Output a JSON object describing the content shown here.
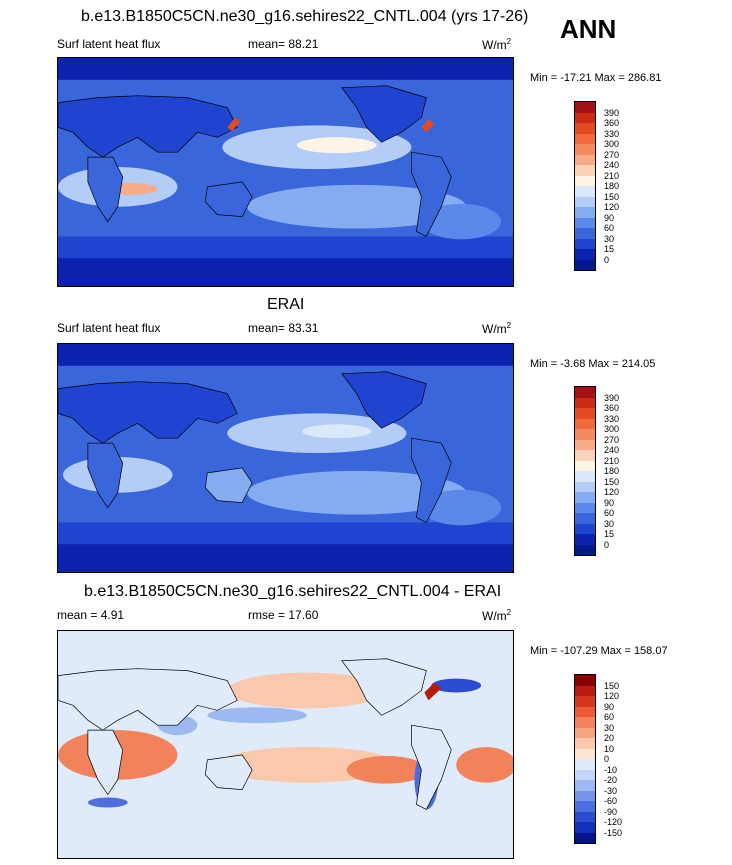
{
  "season": "ANN",
  "panels": [
    {
      "title": "b.e13.B1850C5CN.ne30_g16.sehires22_CNTL.004 (yrs 17-26)",
      "left_label": "Surf latent heat flux",
      "center_label": "mean=  88.21",
      "units": "W/m",
      "units_sup": "2",
      "minmax": "Min = -17.21 Max = 286.81",
      "colorbar": {
        "labels": [
          "390",
          "360",
          "330",
          "300",
          "270",
          "240",
          "210",
          "180",
          "150",
          "120",
          "90",
          "60",
          "30",
          "15",
          "0"
        ],
        "colors": [
          "#a50f15",
          "#cb2a14",
          "#e34a20",
          "#f06a3c",
          "#f48a5e",
          "#f7ab86",
          "#fbd3b8",
          "#fff3e6",
          "#dbe8fb",
          "#b3cdf6",
          "#85acf0",
          "#5a89ea",
          "#3a66dc",
          "#1f44cf",
          "#0c22b0",
          "#001a8e"
        ]
      }
    },
    {
      "title": "ERAI",
      "left_label": "Surf latent heat flux",
      "center_label": "mean=  83.31",
      "units": "W/m",
      "units_sup": "2",
      "minmax": "Min =  -3.68 Max = 214.05",
      "colorbar": {
        "labels": [
          "390",
          "360",
          "330",
          "300",
          "270",
          "240",
          "210",
          "180",
          "150",
          "120",
          "90",
          "60",
          "30",
          "15",
          "0"
        ],
        "colors": [
          "#a50f15",
          "#cb2a14",
          "#e34a20",
          "#f06a3c",
          "#f48a5e",
          "#f7ab86",
          "#fbd3b8",
          "#fff3e6",
          "#dbe8fb",
          "#b3cdf6",
          "#85acf0",
          "#5a89ea",
          "#3a66dc",
          "#1f44cf",
          "#0c22b0",
          "#001a8e"
        ]
      }
    },
    {
      "title": "b.e13.B1850C5CN.ne30_g16.sehires22_CNTL.004 - ERAI",
      "left_label": "mean =   4.91",
      "center_label": "rmse =  17.60",
      "units": "W/m",
      "units_sup": "2",
      "minmax": "Min = -107.29 Max = 158.07",
      "colorbar": {
        "labels": [
          "150",
          "120",
          "90",
          "60",
          "30",
          "20",
          "10",
          "0",
          "-10",
          "-20",
          "-30",
          "-60",
          "-90",
          "-120",
          "-150"
        ],
        "colors": [
          "#8b0000",
          "#b81c10",
          "#d8361c",
          "#ea5a35",
          "#f2825a",
          "#f6a582",
          "#fac8aa",
          "#fde6d6",
          "#dfeafb",
          "#c2d6f7",
          "#9db9f1",
          "#7595ea",
          "#4d6edf",
          "#2d4bd1",
          "#1530b8",
          "#03138f"
        ]
      }
    }
  ]
}
